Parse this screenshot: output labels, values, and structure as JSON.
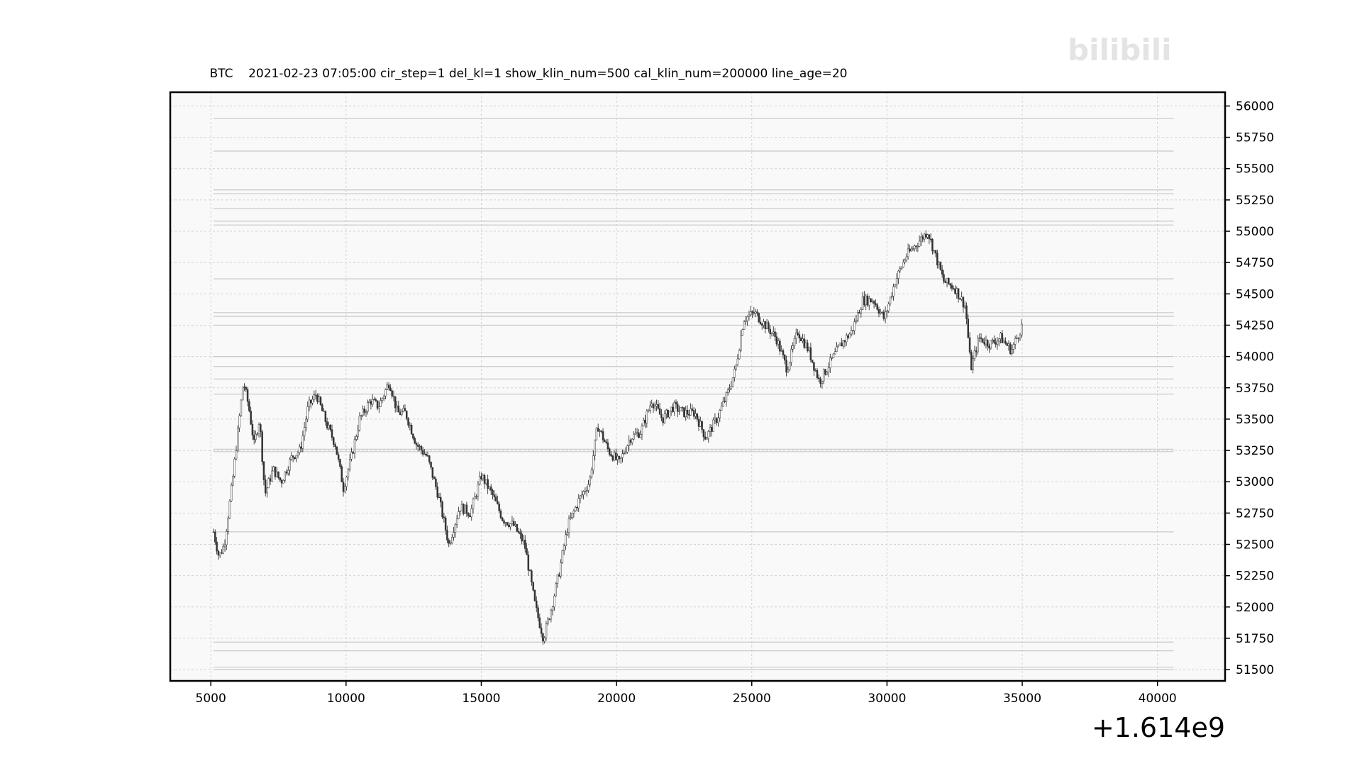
{
  "chart_data": {
    "type": "candlestick",
    "title": "BTC    2021-02-23 07:05:00 cir_step=1 del_kl=1 show_klin_num=500 cal_klin_num=200000 line_age=20",
    "xlabel": "",
    "ylabel": "",
    "x_offset_label": "+1.614e9",
    "xlim": [
      3500,
      42500
    ],
    "ylim": [
      51410,
      56110
    ],
    "x_ticks": [
      5000,
      10000,
      15000,
      20000,
      25000,
      30000,
      35000,
      40000
    ],
    "y_ticks": [
      51500,
      51750,
      52000,
      52250,
      52500,
      52750,
      53000,
      53250,
      53500,
      53750,
      54000,
      54250,
      54500,
      54750,
      55000,
      55250,
      55500,
      55750,
      56000
    ],
    "y_axis_side": "right",
    "grid": true,
    "price_keypoints": [
      [
        5100,
        52600
      ],
      [
        5300,
        52400
      ],
      [
        5500,
        52500
      ],
      [
        5800,
        53000
      ],
      [
        6000,
        53400
      ],
      [
        6200,
        53800
      ],
      [
        6400,
        53600
      ],
      [
        6600,
        53300
      ],
      [
        6800,
        53500
      ],
      [
        7000,
        52900
      ],
      [
        7300,
        53100
      ],
      [
        7600,
        53000
      ],
      [
        8000,
        53200
      ],
      [
        8300,
        53250
      ],
      [
        8600,
        53600
      ],
      [
        8900,
        53700
      ],
      [
        9300,
        53450
      ],
      [
        9600,
        53300
      ],
      [
        9900,
        52950
      ],
      [
        10200,
        53200
      ],
      [
        10500,
        53500
      ],
      [
        10900,
        53650
      ],
      [
        11200,
        53600
      ],
      [
        11600,
        53800
      ],
      [
        11900,
        53550
      ],
      [
        12200,
        53550
      ],
      [
        12600,
        53300
      ],
      [
        13000,
        53200
      ],
      [
        13400,
        52900
      ],
      [
        13800,
        52500
      ],
      [
        14200,
        52800
      ],
      [
        14600,
        52750
      ],
      [
        15000,
        53050
      ],
      [
        15400,
        52900
      ],
      [
        15800,
        52700
      ],
      [
        16200,
        52650
      ],
      [
        16600,
        52500
      ],
      [
        17000,
        52000
      ],
      [
        17300,
        51750
      ],
      [
        17600,
        52000
      ],
      [
        17900,
        52300
      ],
      [
        18200,
        52650
      ],
      [
        18600,
        52850
      ],
      [
        19000,
        53000
      ],
      [
        19300,
        53450
      ],
      [
        19700,
        53250
      ],
      [
        20100,
        53150
      ],
      [
        20500,
        53350
      ],
      [
        20900,
        53400
      ],
      [
        21300,
        53650
      ],
      [
        21700,
        53500
      ],
      [
        22100,
        53600
      ],
      [
        22500,
        53550
      ],
      [
        22900,
        53550
      ],
      [
        23300,
        53350
      ],
      [
        23700,
        53500
      ],
      [
        24100,
        53700
      ],
      [
        24400,
        53900
      ],
      [
        24700,
        54300
      ],
      [
        25100,
        54350
      ],
      [
        25500,
        54250
      ],
      [
        25900,
        54150
      ],
      [
        26300,
        53900
      ],
      [
        26700,
        54200
      ],
      [
        27100,
        54050
      ],
      [
        27500,
        53800
      ],
      [
        27900,
        53950
      ],
      [
        28300,
        54100
      ],
      [
        28700,
        54200
      ],
      [
        29100,
        54450
      ],
      [
        29500,
        54450
      ],
      [
        29900,
        54300
      ],
      [
        30300,
        54600
      ],
      [
        30700,
        54800
      ],
      [
        31100,
        54900
      ],
      [
        31500,
        55000
      ],
      [
        31800,
        54800
      ],
      [
        32100,
        54600
      ],
      [
        32500,
        54550
      ],
      [
        32900,
        54400
      ],
      [
        33100,
        53900
      ],
      [
        33400,
        54150
      ],
      [
        33800,
        54100
      ],
      [
        34200,
        54150
      ],
      [
        34600,
        54050
      ],
      [
        35000,
        54250
      ]
    ],
    "horizontal_level_lines": [
      55900,
      55640,
      55330,
      55300,
      55180,
      55080,
      55050,
      54620,
      54350,
      54320,
      54250,
      54000,
      53920,
      53820,
      53700,
      53260,
      53240,
      52600,
      51720,
      51650,
      51520,
      51500
    ],
    "colors": {
      "candle": "#333333",
      "level_line": "#c8c8c8",
      "grid": "#d2d2d2",
      "plot_background": "#f9f9f9",
      "frame": "#000000"
    }
  },
  "watermark": {
    "text": "bilibili"
  }
}
